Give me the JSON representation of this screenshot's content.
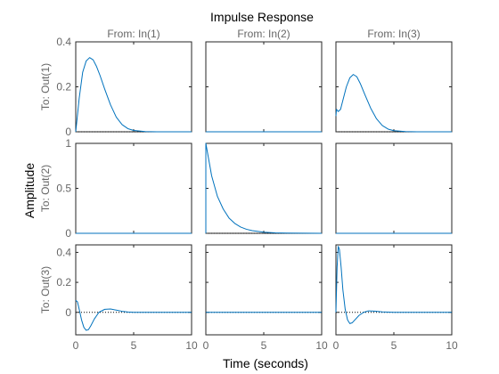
{
  "chart_data": {
    "type": "line",
    "title": "Impulse Response",
    "xlabel": "Time (seconds)",
    "ylabel": "Amplitude",
    "column_titles": [
      "From: In(1)",
      "From: In(2)",
      "From: In(3)"
    ],
    "row_labels": [
      "To: Out(1)",
      "To: Out(2)",
      "To: Out(3)"
    ],
    "xlim": [
      0,
      10
    ],
    "xticks": [
      0,
      5,
      10
    ],
    "grid": false,
    "legend": "none",
    "line_color": "#0072BD",
    "rows": [
      {
        "ylim": [
          0,
          0.4
        ],
        "yticks": [
          0,
          0.2,
          0.4
        ],
        "yticklabels": [
          "0",
          "0.2",
          "0.4"
        ]
      },
      {
        "ylim": [
          0,
          1
        ],
        "yticks": [
          0,
          0.5,
          1
        ],
        "yticklabels": [
          "0",
          "0.5",
          "1"
        ]
      },
      {
        "ylim": [
          -0.15,
          0.45
        ],
        "yticks": [
          0,
          0.2,
          0.4
        ],
        "yticklabels": [
          "0",
          "0.2",
          "0.4"
        ]
      }
    ],
    "xticklabels": [
      "0",
      "5",
      "10"
    ],
    "series": [
      {
        "row": 0,
        "col": 0,
        "x": [
          0,
          0.3,
          0.6,
          0.9,
          1.2,
          1.5,
          1.8,
          2.1,
          2.5,
          3,
          3.5,
          4,
          4.5,
          5,
          6,
          7,
          8,
          10
        ],
        "y": [
          0,
          0.15,
          0.265,
          0.315,
          0.33,
          0.32,
          0.29,
          0.25,
          0.19,
          0.12,
          0.065,
          0.032,
          0.014,
          0.006,
          0.001,
          0,
          0,
          0
        ]
      },
      {
        "row": 0,
        "col": 1,
        "x": [
          0,
          10
        ],
        "y": [
          0,
          0
        ]
      },
      {
        "row": 0,
        "col": 2,
        "x": [
          0,
          0.05,
          0.2,
          0.4,
          0.6,
          0.9,
          1.2,
          1.5,
          1.8,
          2.1,
          2.5,
          3,
          3.5,
          4,
          4.5,
          5,
          6,
          7,
          10
        ],
        "y": [
          0.07,
          0.1,
          0.09,
          0.1,
          0.14,
          0.2,
          0.24,
          0.255,
          0.245,
          0.215,
          0.165,
          0.105,
          0.058,
          0.028,
          0.012,
          0.005,
          0.001,
          0,
          0
        ]
      },
      {
        "row": 1,
        "col": 0,
        "x": [
          0,
          10
        ],
        "y": [
          0,
          0
        ]
      },
      {
        "row": 1,
        "col": 1,
        "x": [
          0,
          0,
          0.5,
          1,
          1.5,
          2,
          2.5,
          3,
          3.5,
          4,
          5,
          6,
          7,
          10
        ],
        "y": [
          0,
          1,
          0.64,
          0.41,
          0.27,
          0.17,
          0.11,
          0.07,
          0.045,
          0.03,
          0.012,
          0.005,
          0.002,
          0
        ]
      },
      {
        "row": 1,
        "col": 2,
        "x": [
          0,
          10
        ],
        "y": [
          0,
          0
        ]
      },
      {
        "row": 2,
        "col": 0,
        "x": [
          0,
          0.15,
          0.3,
          0.5,
          0.7,
          0.9,
          1.1,
          1.3,
          1.6,
          2,
          2.5,
          3,
          3.5,
          4,
          4.5,
          5,
          6,
          7,
          10
        ],
        "y": [
          0.08,
          0.07,
          0.02,
          -0.05,
          -0.1,
          -0.12,
          -0.115,
          -0.09,
          -0.045,
          0,
          0.02,
          0.022,
          0.015,
          0.007,
          0.002,
          0,
          0,
          0,
          0
        ]
      },
      {
        "row": 2,
        "col": 1,
        "x": [
          0,
          10
        ],
        "y": [
          0,
          0
        ]
      },
      {
        "row": 2,
        "col": 2,
        "x": [
          0,
          0.1,
          0.2,
          0.3,
          0.45,
          0.6,
          0.8,
          1,
          1.2,
          1.4,
          1.7,
          2,
          2.4,
          2.8,
          3.3,
          4,
          5,
          6,
          10
        ],
        "y": [
          0,
          0.3,
          0.44,
          0.42,
          0.3,
          0.15,
          0.02,
          -0.05,
          -0.075,
          -0.07,
          -0.045,
          -0.02,
          0,
          0.01,
          0.008,
          0.003,
          0,
          0,
          0
        ]
      }
    ]
  }
}
